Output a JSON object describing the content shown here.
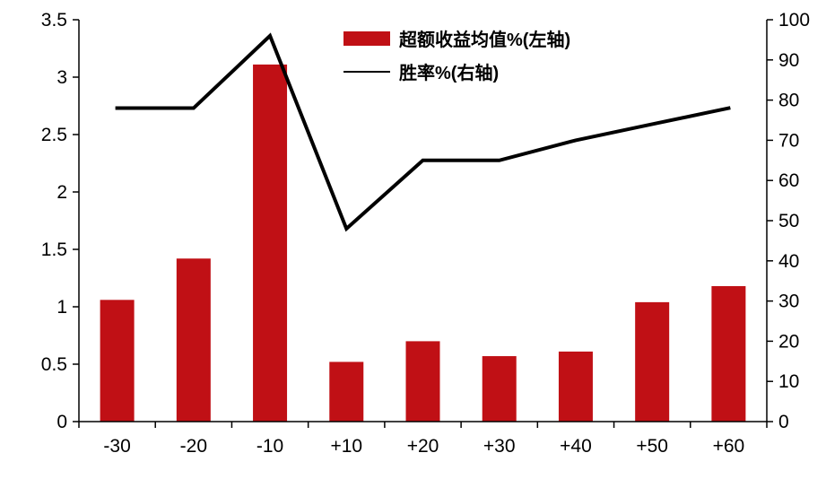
{
  "chart_data": {
    "type": "bar",
    "combo": "bar+line",
    "title": "",
    "xlabel": "",
    "ylabel_left": "",
    "ylabel_right": "",
    "categories": [
      "-30",
      "-20",
      "-10",
      "+10",
      "+20",
      "+30",
      "+40",
      "+50",
      "+60"
    ],
    "series": [
      {
        "name": "超额收益均值%(左轴)",
        "type": "bar",
        "axis": "left",
        "color": "#C01015",
        "values": [
          1.06,
          1.42,
          3.11,
          0.52,
          0.7,
          0.57,
          0.61,
          1.04,
          1.18
        ]
      },
      {
        "name": "胜率%(右轴)",
        "type": "line",
        "axis": "right",
        "color": "#000000",
        "values": [
          78,
          78,
          96,
          48,
          65,
          65,
          70,
          74,
          78
        ]
      }
    ],
    "left_axis": {
      "min": 0,
      "max": 3.5,
      "step": 0.5,
      "tick_labels": [
        "0",
        "0.5",
        "1",
        "1.5",
        "2",
        "2.5",
        "3",
        "3.5"
      ]
    },
    "right_axis": {
      "min": 0,
      "max": 100,
      "step": 10,
      "tick_labels": [
        "0",
        "10",
        "20",
        "30",
        "40",
        "50",
        "60",
        "70",
        "80",
        "90",
        "100"
      ]
    },
    "legend_position": "top-center",
    "grid": false,
    "colors": {
      "bar": "#C01015",
      "line": "#000000",
      "axis": "#000000",
      "background": "#FFFFFF"
    }
  }
}
